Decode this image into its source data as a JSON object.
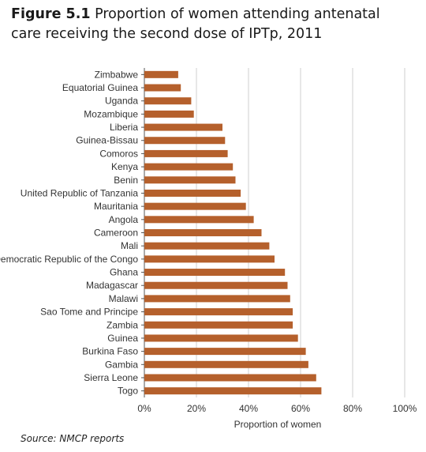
{
  "title": {
    "figure_label": "Figure 5.1",
    "text": "Proportion of women attending antenatal care receiving the second dose of IPTp, 2011"
  },
  "source": {
    "label": "Source:",
    "text": "NMCP reports"
  },
  "colors": {
    "bar": "#b5602c",
    "grid": "#cfcfcf",
    "axis": "#555555"
  },
  "chart_data": {
    "type": "bar",
    "orientation": "horizontal",
    "title": "Proportion of women attending antenatal care receiving the second dose of IPTp, 2011",
    "xlabel": "Proportion of women",
    "ylabel": "",
    "xlim": [
      0,
      100
    ],
    "xticks": [
      "0%",
      "20%",
      "40%",
      "60%",
      "80%",
      "100%"
    ],
    "grid": true,
    "categories": [
      "Zimbabwe",
      "Equatorial Guinea",
      "Uganda",
      "Mozambique",
      "Liberia",
      "Guinea-Bissau",
      "Comoros",
      "Kenya",
      "Benin",
      "United Republic of Tanzania",
      "Mauritania",
      "Angola",
      "Cameroon",
      "Mali",
      "Democratic Republic of the Congo",
      "Ghana",
      "Madagascar",
      "Malawi",
      "Sao Tome and Principe",
      "Zambia",
      "Guinea",
      "Burkina Faso",
      "Gambia",
      "Sierra Leone",
      "Togo"
    ],
    "values": [
      13,
      14,
      18,
      19,
      30,
      31,
      32,
      34,
      35,
      37,
      39,
      42,
      45,
      48,
      50,
      54,
      55,
      56,
      57,
      57,
      59,
      62,
      63,
      66,
      68
    ]
  }
}
